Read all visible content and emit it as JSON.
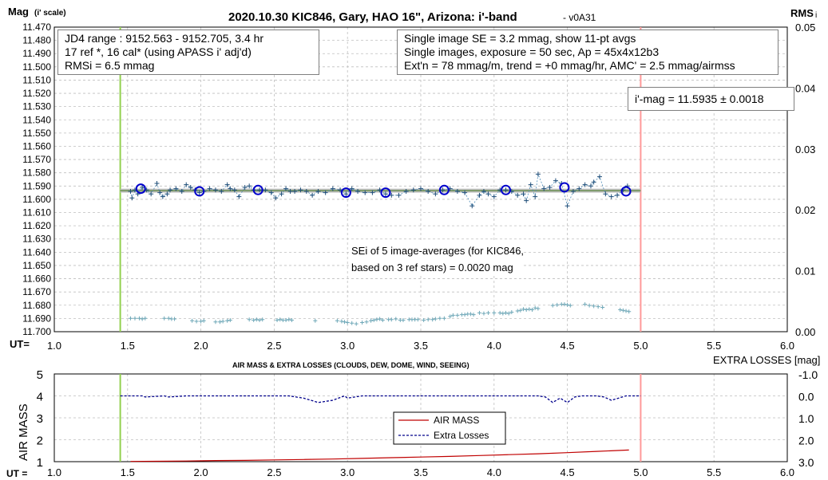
{
  "chart_data": [
    {
      "type": "scatter",
      "title": "2020.10.30 KIC846, Gary, HAO 16\", Arizona: i'-band",
      "version": "- v0A31",
      "ylabel_main": "Mag",
      "ylabel_sub": "(i' scale)",
      "y2label_main": "RMS",
      "y2label_sub": "i",
      "xlabel": "UT=",
      "x_ticks": [
        "1.0",
        "1.5",
        "2.0",
        "2.5",
        "3.0",
        "3.5",
        "4.0",
        "4.5",
        "5.0",
        "5.5",
        "6.0"
      ],
      "y_ticks": [
        "11.470",
        "11.480",
        "11.490",
        "11.500",
        "11.510",
        "11.520",
        "11.530",
        "11.540",
        "11.550",
        "11.560",
        "11.570",
        "11.580",
        "11.590",
        "11.600",
        "11.610",
        "11.620",
        "11.630",
        "11.640",
        "11.650",
        "11.660",
        "11.670",
        "11.680",
        "11.690",
        "11.700"
      ],
      "y2_ticks": [
        "0.05",
        "0.04",
        "0.03",
        "0.02",
        "0.01",
        "0.00"
      ],
      "xlim": [
        1.0,
        6.0
      ],
      "ylim": [
        11.47,
        11.7
      ],
      "y_inverted": true,
      "y2lim": [
        0.0,
        0.05
      ],
      "grid": true,
      "vertical_markers": [
        {
          "x": 1.45,
          "color": "#92d050"
        },
        {
          "x": 5.0,
          "color": "#ff9999"
        }
      ],
      "fit_line": {
        "y": 11.5935,
        "x_range": [
          1.45,
          5.0
        ],
        "color": "#548235"
      },
      "image_averages": {
        "x": [
          1.59,
          1.99,
          2.39,
          2.99,
          3.26,
          3.66,
          4.08,
          4.48,
          4.9
        ],
        "y": [
          11.592,
          11.594,
          11.593,
          11.595,
          11.595,
          11.593,
          11.593,
          11.591,
          11.594
        ]
      },
      "single_images": {
        "x": [
          1.52,
          1.53,
          1.55,
          1.57,
          1.6,
          1.63,
          1.66,
          1.7,
          1.72,
          1.74,
          1.77,
          1.79,
          1.83,
          1.87,
          1.9,
          1.93,
          1.96,
          1.99,
          2.02,
          2.06,
          2.1,
          2.14,
          2.18,
          2.2,
          2.23,
          2.26,
          2.3,
          2.33,
          2.36,
          2.4,
          2.44,
          2.48,
          2.51,
          2.55,
          2.58,
          2.61,
          2.64,
          2.68,
          2.72,
          2.76,
          2.8,
          2.85,
          2.9,
          2.95,
          2.99,
          3.03,
          3.07,
          3.12,
          3.17,
          3.22,
          3.26,
          3.3,
          3.35,
          3.4,
          3.45,
          3.5,
          3.55,
          3.6,
          3.65,
          3.7,
          3.75,
          3.8,
          3.85,
          3.9,
          3.93,
          3.96,
          4.0,
          4.04,
          4.08,
          4.12,
          4.16,
          4.2,
          4.22,
          4.25,
          4.28,
          4.3,
          4.34,
          4.38,
          4.42,
          4.46,
          4.5,
          4.54,
          4.58,
          4.62,
          4.66,
          4.68,
          4.72,
          4.76,
          4.8,
          4.84,
          4.88,
          4.91
        ],
        "y": [
          11.594,
          11.599,
          11.593,
          11.596,
          11.591,
          11.593,
          11.596,
          11.588,
          11.595,
          11.598,
          11.596,
          11.593,
          11.592,
          11.594,
          11.589,
          11.591,
          11.593,
          11.595,
          11.594,
          11.592,
          11.593,
          11.594,
          11.589,
          11.592,
          11.593,
          11.598,
          11.591,
          11.59,
          11.593,
          11.593,
          11.593,
          11.595,
          11.599,
          11.596,
          11.592,
          11.594,
          11.594,
          11.593,
          11.594,
          11.597,
          11.594,
          11.595,
          11.592,
          11.593,
          11.596,
          11.592,
          11.594,
          11.595,
          11.595,
          11.593,
          11.596,
          11.597,
          11.597,
          11.594,
          11.593,
          11.592,
          11.594,
          11.596,
          11.593,
          11.592,
          11.594,
          11.595,
          11.605,
          11.597,
          11.594,
          11.596,
          11.598,
          11.593,
          11.593,
          11.594,
          11.597,
          11.596,
          11.601,
          11.589,
          11.598,
          11.581,
          11.592,
          11.591,
          11.586,
          11.588,
          11.605,
          11.594,
          11.592,
          11.589,
          11.59,
          11.587,
          11.583,
          11.596,
          11.598,
          11.597,
          11.593,
          11.59
        ]
      },
      "rms_points": {
        "x": [
          1.52,
          1.55,
          1.58,
          1.6,
          1.62,
          1.75,
          1.78,
          1.8,
          1.82,
          1.94,
          1.97,
          2.0,
          2.02,
          2.1,
          2.13,
          2.15,
          2.18,
          2.2,
          2.33,
          2.36,
          2.38,
          2.4,
          2.42,
          2.52,
          2.54,
          2.56,
          2.58,
          2.6,
          2.62,
          2.78,
          2.93,
          2.96,
          2.98,
          3.0,
          3.03,
          3.06,
          3.1,
          3.13,
          3.16,
          3.18,
          3.2,
          3.22,
          3.24,
          3.28,
          3.3,
          3.33,
          3.36,
          3.38,
          3.42,
          3.44,
          3.46,
          3.48,
          3.52,
          3.55,
          3.58,
          3.6,
          3.63,
          3.66,
          3.7,
          3.72,
          3.75,
          3.78,
          3.8,
          3.82,
          3.84,
          3.86,
          3.9,
          3.93,
          3.96,
          4.0,
          4.04,
          4.06,
          4.08,
          4.1,
          4.12,
          4.16,
          4.18,
          4.2,
          4.22,
          4.24,
          4.26,
          4.28,
          4.3,
          4.4,
          4.43,
          4.46,
          4.48,
          4.5,
          4.52,
          4.62,
          4.65,
          4.68,
          4.71,
          4.74,
          4.86,
          4.88,
          4.9,
          4.92
        ],
        "y": [
          0.0022,
          0.0022,
          0.0022,
          0.0021,
          0.0022,
          0.0022,
          0.0022,
          0.0021,
          0.0021,
          0.0018,
          0.0017,
          0.0017,
          0.0018,
          0.0016,
          0.0016,
          0.0017,
          0.0018,
          0.0019,
          0.002,
          0.0019,
          0.002,
          0.0019,
          0.002,
          0.0019,
          0.002,
          0.0019,
          0.0019,
          0.002,
          0.0019,
          0.0018,
          0.0018,
          0.0017,
          0.0016,
          0.0015,
          0.0014,
          0.0013,
          0.0015,
          0.0016,
          0.0018,
          0.0019,
          0.002,
          0.0021,
          0.0019,
          0.002,
          0.002,
          0.0021,
          0.0019,
          0.0019,
          0.002,
          0.002,
          0.002,
          0.002,
          0.0019,
          0.002,
          0.002,
          0.0021,
          0.0022,
          0.0022,
          0.0025,
          0.0027,
          0.0027,
          0.0028,
          0.0028,
          0.0029,
          0.0029,
          0.0028,
          0.0031,
          0.003,
          0.0031,
          0.0031,
          0.0031,
          0.003,
          0.0031,
          0.003,
          0.0032,
          0.0034,
          0.0035,
          0.0037,
          0.0036,
          0.0037,
          0.0036,
          0.0039,
          0.0038,
          0.0043,
          0.0044,
          0.0045,
          0.0045,
          0.0044,
          0.0043,
          0.0045,
          0.0043,
          0.0042,
          0.0041,
          0.004,
          0.0036,
          0.0035,
          0.0034,
          0.0033
        ]
      }
    },
    {
      "type": "line",
      "title": "AIR MASS & EXTRA LOSSES (CLOUDS, DEW, DOME, WIND, SEEING)",
      "ylabel": "AIR MASS",
      "y2label": "EXTRA LOSSES [mag]",
      "xlabel": "UT =",
      "x_ticks": [
        "1.0",
        "1.5",
        "2.0",
        "2.5",
        "3.0",
        "3.5",
        "4.0",
        "4.5",
        "5.0",
        "5.5",
        "6.0"
      ],
      "y_ticks": [
        "5",
        "4",
        "3",
        "2",
        "1"
      ],
      "y2_ticks": [
        "-1.0",
        "0.0",
        "1.0",
        "2.0",
        "3.0"
      ],
      "xlim": [
        1.0,
        6.0
      ],
      "ylim": [
        1,
        5
      ],
      "y2lim": [
        -1.0,
        3.0
      ],
      "y2_inverted": true,
      "grid": true,
      "series": [
        {
          "name": "AIR MASS",
          "color": "#c00000",
          "x": [
            1.52,
            1.7,
            1.9,
            2.1,
            2.3,
            2.5,
            2.7,
            2.9,
            3.1,
            3.3,
            3.5,
            3.7,
            3.9,
            4.1,
            4.3,
            4.5,
            4.7,
            4.92
          ],
          "y": [
            1.01,
            1.02,
            1.03,
            1.05,
            1.06,
            1.08,
            1.1,
            1.12,
            1.15,
            1.18,
            1.21,
            1.24,
            1.28,
            1.32,
            1.36,
            1.41,
            1.47,
            1.53
          ]
        },
        {
          "name": "Extra Losses",
          "color": "#00008b",
          "x": [
            1.45,
            1.6,
            1.62,
            1.75,
            1.78,
            1.9,
            2.0,
            2.1,
            2.2,
            2.3,
            2.4,
            2.5,
            2.6,
            2.7,
            2.75,
            2.8,
            2.9,
            2.98,
            3.0,
            3.1,
            3.3,
            3.4,
            3.5,
            3.6,
            3.7,
            3.8,
            3.9,
            4.0,
            4.1,
            4.2,
            4.3,
            4.35,
            4.4,
            4.45,
            4.5,
            4.55,
            4.6,
            4.7,
            4.75,
            4.8,
            4.9,
            5.0
          ],
          "y": [
            0.0,
            0.0,
            0.05,
            0.0,
            0.05,
            0.0,
            0.0,
            0.0,
            0.0,
            0.0,
            0.0,
            0.0,
            0.0,
            0.1,
            0.2,
            0.3,
            0.2,
            0.0,
            0.1,
            0.0,
            0.0,
            0.0,
            0.0,
            0.0,
            0.0,
            0.0,
            0.0,
            0.0,
            0.0,
            0.0,
            0.0,
            0.05,
            0.3,
            0.1,
            0.3,
            0.05,
            0.0,
            0.0,
            0.05,
            0.2,
            0.0,
            0.0
          ]
        }
      ]
    }
  ],
  "boxes": {
    "jd": [
      "JD4 range : 9152.563 - 9152.705, 3.4  hr",
      "17 ref *, 16 cal* (using APASS i' adj'd)",
      "RMSi = 6.5 mmag"
    ],
    "exposure": [
      "Single image SE = 3.2 mmag, show 11-pt avgs",
      "Single images, exposure = 50 sec, Ap = 45x4x12b3",
      "Ext'n = 78 mmag/m, trend = +0 mmag/hr, AMC' = 2.5 mmag/airmss"
    ],
    "imag": "i'-mag = 11.5935 ± 0.0018",
    "sei": [
      "SEi of 5 image-averages (for KIC846,",
      "based on 3 ref stars) = 0.0020 mag"
    ]
  }
}
